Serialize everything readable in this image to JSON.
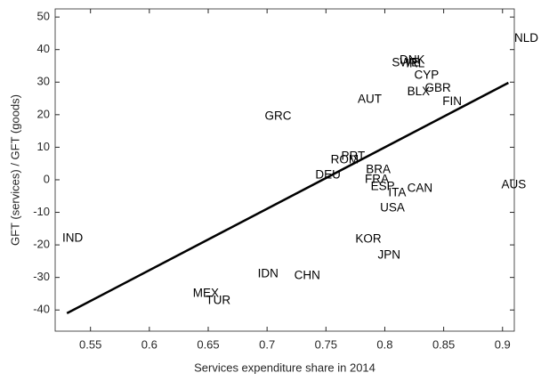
{
  "chart_data": {
    "type": "scatter",
    "xlabel": "Services expenditure share in 2014",
    "ylabel": "GFT (services) / GFT (goods)",
    "labels": [
      "NLD",
      "DNK",
      "SWE",
      "IRL",
      "CYP",
      "GBR",
      "BLX",
      "FIN",
      "AUT",
      "GRC",
      "PRT",
      "ROM",
      "DEU",
      "BRA",
      "FRA",
      "ESP",
      "ITA",
      "CAN",
      "USA",
      "AUS",
      "KOR",
      "JPN",
      "IND",
      "IDN",
      "CHN",
      "MEX",
      "TUR"
    ],
    "x": [
      0.91,
      0.8125,
      0.806,
      0.818,
      0.825,
      0.834,
      0.819,
      0.849,
      0.777,
      0.698,
      0.763,
      0.754,
      0.741,
      0.784,
      0.783,
      0.788,
      0.803,
      0.819,
      0.796,
      0.899,
      0.775,
      0.794,
      0.526,
      0.692,
      0.723,
      0.637,
      0.648
    ],
    "y": [
      43.4,
      36.6,
      35.8,
      35.5,
      32.0,
      28.1,
      27.0,
      24.0,
      24.6,
      19.4,
      7.1,
      6.0,
      1.4,
      3.0,
      0.0,
      -2.2,
      -4.1,
      -2.7,
      -8.7,
      -1.6,
      -18.3,
      -23.2,
      -18.0,
      -29.0,
      -29.5,
      -35.0,
      -37.2
    ],
    "fit_line": {
      "x": [
        0.53,
        0.905
      ],
      "y": [
        -41,
        29.8
      ]
    },
    "xlim": [
      0.52,
      0.91
    ],
    "ylim": [
      -46.5,
      52.5
    ],
    "xticks": [
      0.55,
      0.6,
      0.65,
      0.7,
      0.75,
      0.8,
      0.85,
      0.9
    ],
    "yticks": [
      -40,
      -30,
      -20,
      -10,
      0,
      10,
      20,
      30,
      40,
      50
    ]
  }
}
